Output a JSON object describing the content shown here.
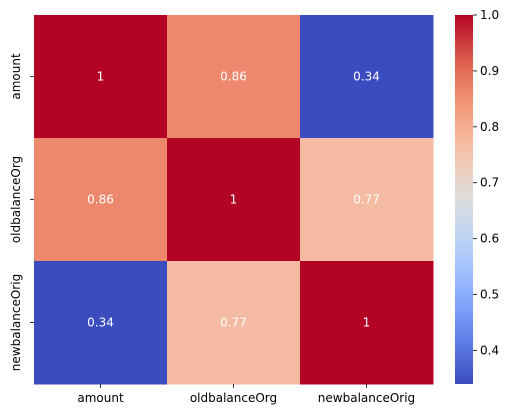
{
  "chart_data": {
    "type": "heatmap",
    "x_categories": [
      "amount",
      "oldbalanceOrg",
      "newbalanceOrig"
    ],
    "y_categories": [
      "amount",
      "oldbalanceOrg",
      "newbalanceOrig"
    ],
    "values": [
      [
        1,
        0.86,
        0.34
      ],
      [
        0.86,
        1,
        0.77
      ],
      [
        0.34,
        0.77,
        1
      ]
    ],
    "value_labels": [
      [
        "1",
        "0.86",
        "0.34"
      ],
      [
        "0.86",
        "1",
        "0.77"
      ],
      [
        "0.34",
        "0.77",
        "1"
      ]
    ],
    "colormap": "coolwarm",
    "vmin": 0.34,
    "vmax": 1.0,
    "colorbar_ticks": [
      "0.4",
      "0.5",
      "0.6",
      "0.7",
      "0.8",
      "0.9",
      "1.0"
    ],
    "colorbar_tick_values": [
      0.4,
      0.5,
      0.6,
      0.7,
      0.8,
      0.9,
      1.0
    ],
    "colorbar_placement": "right",
    "annotation_colors": {
      "dark_cell": "#ffffff",
      "light_cell": "#262626"
    }
  }
}
